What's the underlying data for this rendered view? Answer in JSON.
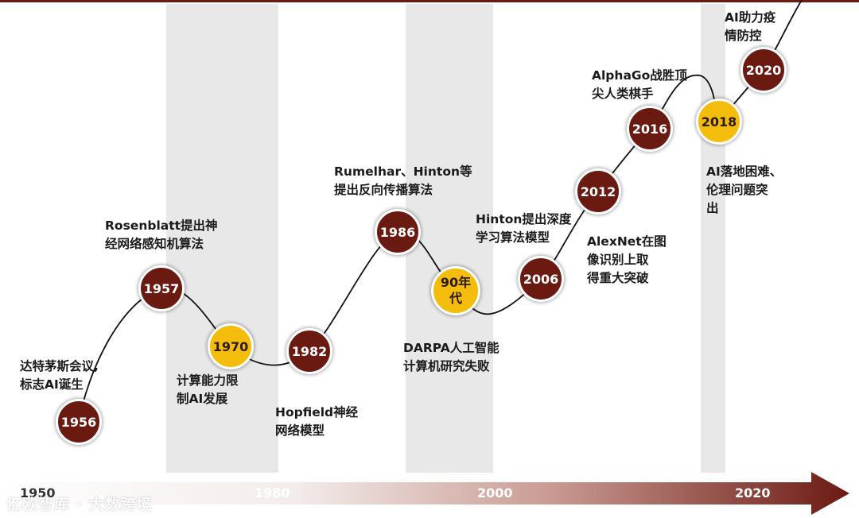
{
  "colors": {
    "dark": "#6b1a12",
    "gold": "#f5bd0b",
    "band": "#e8e8e8",
    "line": "#111111"
  },
  "milestones": [
    {
      "year": "1956",
      "style": "dark",
      "label": [
        "达特茅斯会议,",
        "标志AI诞生"
      ]
    },
    {
      "year": "1957",
      "style": "dark",
      "label": [
        "Rosenblatt提出神",
        "经网络感知机算法"
      ]
    },
    {
      "year": "1970",
      "style": "gold",
      "label": [
        "计算能力限",
        "制AI发展"
      ]
    },
    {
      "year": "1982",
      "style": "dark",
      "label": [
        "Hopfield神经",
        "网络模型"
      ]
    },
    {
      "year": "1986",
      "style": "dark",
      "label": [
        "Rumelhar、Hinton等",
        "提出反向传播算法"
      ]
    },
    {
      "year": "90年代",
      "style": "gold",
      "label": [
        "DARPA人工智能",
        "计算机研究失败"
      ]
    },
    {
      "year": "2006",
      "style": "dark",
      "label": [
        "Hinton提出深度",
        "学习算法模型"
      ]
    },
    {
      "year": "2012",
      "style": "dark",
      "label": [
        "AlexNet在图",
        "像识别上取",
        "得重大突破"
      ]
    },
    {
      "year": "2016",
      "style": "dark",
      "label": [
        "AlphaGo战胜顶",
        "尖人类棋手"
      ]
    },
    {
      "year": "2018",
      "style": "gold",
      "label": [
        "AI落地困难、",
        "伦理问题突",
        "出"
      ]
    },
    {
      "year": "2020",
      "style": "dark",
      "label": [
        "AI助力疫",
        "情防控"
      ]
    }
  ],
  "axis": {
    "ticks": [
      "1950",
      "1980",
      "2000",
      "2020"
    ]
  },
  "watermark": "亿欧智库 · 大数跨境"
}
